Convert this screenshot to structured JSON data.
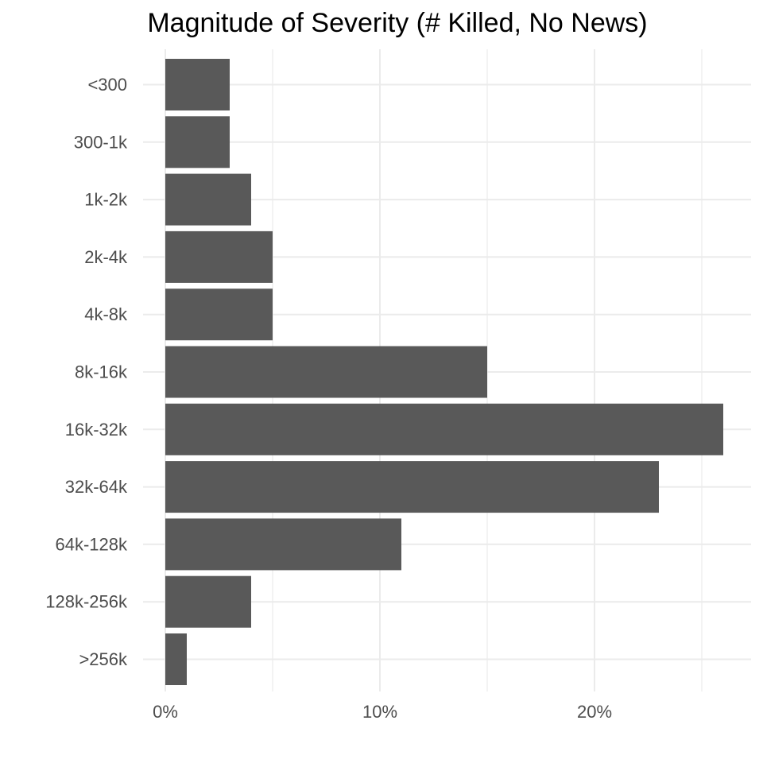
{
  "chart_data": {
    "type": "bar",
    "orientation": "horizontal",
    "title": "Magnitude of Severity (# Killed, No News)",
    "xlabel": "",
    "ylabel": "",
    "categories": [
      "<300",
      "300-1k",
      "1k-2k",
      "2k-4k",
      "4k-8k",
      "8k-16k",
      "16k-32k",
      "32k-64k",
      "64k-128k",
      "128k-256k",
      ">256k"
    ],
    "values": [
      3,
      3,
      4,
      5,
      5,
      15,
      26,
      23,
      11,
      4,
      1
    ],
    "value_unit": "%",
    "xlim": [
      0,
      27.5
    ],
    "x_ticks": [
      0,
      10,
      20
    ],
    "x_tick_labels": [
      "0%",
      "10%",
      "20%"
    ],
    "x_minor_ticks": [
      5,
      15,
      25
    ],
    "grid": true,
    "legend": "none",
    "colors": {
      "bar": "#595959",
      "grid": "#ebebeb",
      "tick_text": "#4d4d4d",
      "title_text": "#000000",
      "background": "#ffffff"
    }
  }
}
